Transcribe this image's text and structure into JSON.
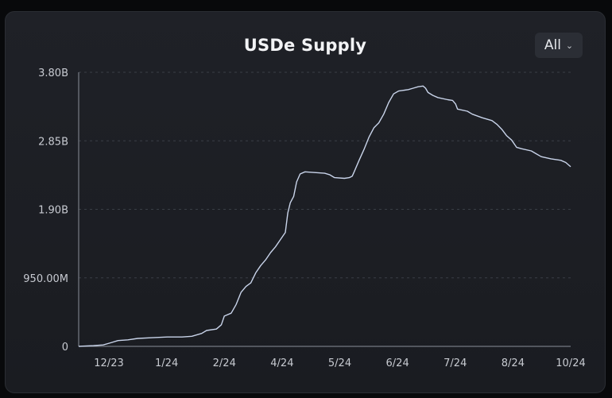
{
  "header": {
    "title": "USDe Supply",
    "range_label": "All",
    "range_icon": "chevron-down-icon"
  },
  "colors": {
    "line": "#c9d4ea",
    "axis": "#8a8f99",
    "grid": "#3a3e46",
    "text": "#c7cad1",
    "background": "#1d1f24"
  },
  "chart_data": {
    "type": "line",
    "title": "USDe Supply",
    "xlabel": "",
    "ylabel": "",
    "ylim": [
      0,
      3.8
    ],
    "yunits": "B",
    "grid": "horizontal dashed",
    "y_ticks": [
      {
        "value": 0,
        "label": "0"
      },
      {
        "value": 0.95,
        "label": "950.00M"
      },
      {
        "value": 1.9,
        "label": "1.90B"
      },
      {
        "value": 2.85,
        "label": "2.85B"
      },
      {
        "value": 3.8,
        "label": "3.80B"
      }
    ],
    "x_ticks": [
      "12/23",
      "1/24",
      "2/24",
      "4/24",
      "5/24",
      "6/24",
      "7/24",
      "8/24",
      "10/24"
    ],
    "x_range": [
      0,
      100
    ],
    "series": [
      {
        "points": [
          [
            0,
            0.0
          ],
          [
            3,
            0.01
          ],
          [
            5,
            0.02
          ],
          [
            6.5,
            0.05
          ],
          [
            8,
            0.08
          ],
          [
            10,
            0.09
          ],
          [
            12,
            0.11
          ],
          [
            15,
            0.12
          ],
          [
            18,
            0.13
          ],
          [
            21,
            0.13
          ],
          [
            23,
            0.14
          ],
          [
            25,
            0.18
          ],
          [
            26,
            0.22
          ],
          [
            28,
            0.24
          ],
          [
            29,
            0.3
          ],
          [
            29.6,
            0.42
          ],
          [
            31,
            0.46
          ],
          [
            32,
            0.58
          ],
          [
            33,
            0.75
          ],
          [
            34,
            0.83
          ],
          [
            35,
            0.88
          ],
          [
            36,
            1.02
          ],
          [
            37,
            1.12
          ],
          [
            38,
            1.2
          ],
          [
            39,
            1.3
          ],
          [
            40,
            1.38
          ],
          [
            41,
            1.48
          ],
          [
            42,
            1.58
          ],
          [
            42.5,
            1.85
          ],
          [
            43,
            1.99
          ],
          [
            43.7,
            2.08
          ],
          [
            44.3,
            2.28
          ],
          [
            45,
            2.39
          ],
          [
            46,
            2.42
          ],
          [
            48,
            2.41
          ],
          [
            50,
            2.4
          ],
          [
            51,
            2.38
          ],
          [
            52,
            2.34
          ],
          [
            54,
            2.33
          ],
          [
            55,
            2.34
          ],
          [
            55.6,
            2.36
          ],
          [
            56,
            2.42
          ],
          [
            57,
            2.58
          ],
          [
            58,
            2.73
          ],
          [
            59,
            2.9
          ],
          [
            60,
            3.03
          ],
          [
            61,
            3.1
          ],
          [
            62,
            3.22
          ],
          [
            63,
            3.38
          ],
          [
            64,
            3.5
          ],
          [
            65,
            3.54
          ],
          [
            66,
            3.55
          ],
          [
            67,
            3.56
          ],
          [
            68,
            3.58
          ],
          [
            69,
            3.6
          ],
          [
            70,
            3.61
          ],
          [
            70.5,
            3.58
          ],
          [
            71,
            3.52
          ],
          [
            72,
            3.48
          ],
          [
            73,
            3.45
          ],
          [
            75,
            3.42
          ],
          [
            76,
            3.41
          ],
          [
            76.6,
            3.36
          ],
          [
            77,
            3.29
          ],
          [
            79,
            3.26
          ],
          [
            80,
            3.22
          ],
          [
            82,
            3.17
          ],
          [
            84,
            3.13
          ],
          [
            85,
            3.08
          ],
          [
            86,
            3.01
          ],
          [
            87,
            2.92
          ],
          [
            88,
            2.86
          ],
          [
            89,
            2.76
          ],
          [
            90,
            2.74
          ],
          [
            92,
            2.71
          ],
          [
            93,
            2.67
          ],
          [
            94,
            2.63
          ],
          [
            96,
            2.6
          ],
          [
            98,
            2.58
          ],
          [
            99,
            2.55
          ],
          [
            100,
            2.49
          ]
        ]
      }
    ]
  }
}
